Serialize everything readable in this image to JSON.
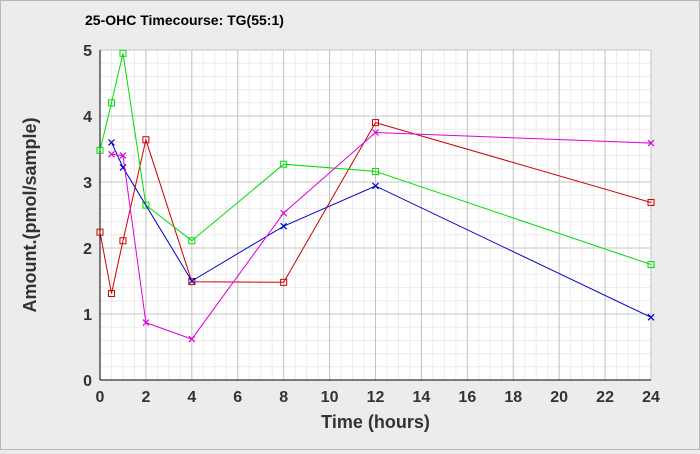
{
  "chart_data": {
    "type": "line",
    "title": "25-OHC Timecourse: TG(55:1)",
    "xlabel": "Time (hours)",
    "ylabel": "Amount.(pmol/sample)",
    "xlim": [
      0,
      24
    ],
    "ylim": [
      0,
      5
    ],
    "xticks": [
      0,
      2,
      4,
      6,
      8,
      10,
      12,
      14,
      16,
      18,
      20,
      22,
      24
    ],
    "yticks": [
      0,
      1,
      2,
      3,
      4,
      5
    ],
    "grid": true,
    "legend": "none",
    "series": [
      {
        "color": "#cc0000",
        "marker": "square",
        "points": [
          [
            0,
            2.24
          ],
          [
            0.5,
            1.31
          ],
          [
            1,
            2.11
          ],
          [
            2,
            3.64
          ],
          [
            4,
            1.49
          ],
          [
            8,
            1.48
          ],
          [
            12,
            3.9
          ],
          [
            24,
            2.69
          ]
        ]
      },
      {
        "color": "#00dd00",
        "marker": "square",
        "points": [
          [
            0,
            3.48
          ],
          [
            0.5,
            4.2
          ],
          [
            1,
            4.95
          ],
          [
            2,
            2.65
          ],
          [
            4,
            2.11
          ],
          [
            8,
            3.27
          ],
          [
            12,
            3.16
          ],
          [
            24,
            1.75
          ]
        ]
      },
      {
        "color": "#0000cc",
        "marker": "x",
        "points": [
          [
            0.5,
            3.6
          ],
          [
            1,
            3.22
          ],
          [
            4,
            1.5
          ],
          [
            8,
            2.33
          ],
          [
            12,
            2.94
          ],
          [
            24,
            0.95
          ]
        ]
      },
      {
        "color": "#dd00dd",
        "marker": "x",
        "points": [
          [
            0.5,
            3.42
          ],
          [
            1,
            3.4
          ],
          [
            2,
            0.87
          ],
          [
            4,
            0.62
          ],
          [
            8,
            2.53
          ],
          [
            12,
            3.75
          ],
          [
            24,
            3.59
          ]
        ]
      }
    ]
  }
}
